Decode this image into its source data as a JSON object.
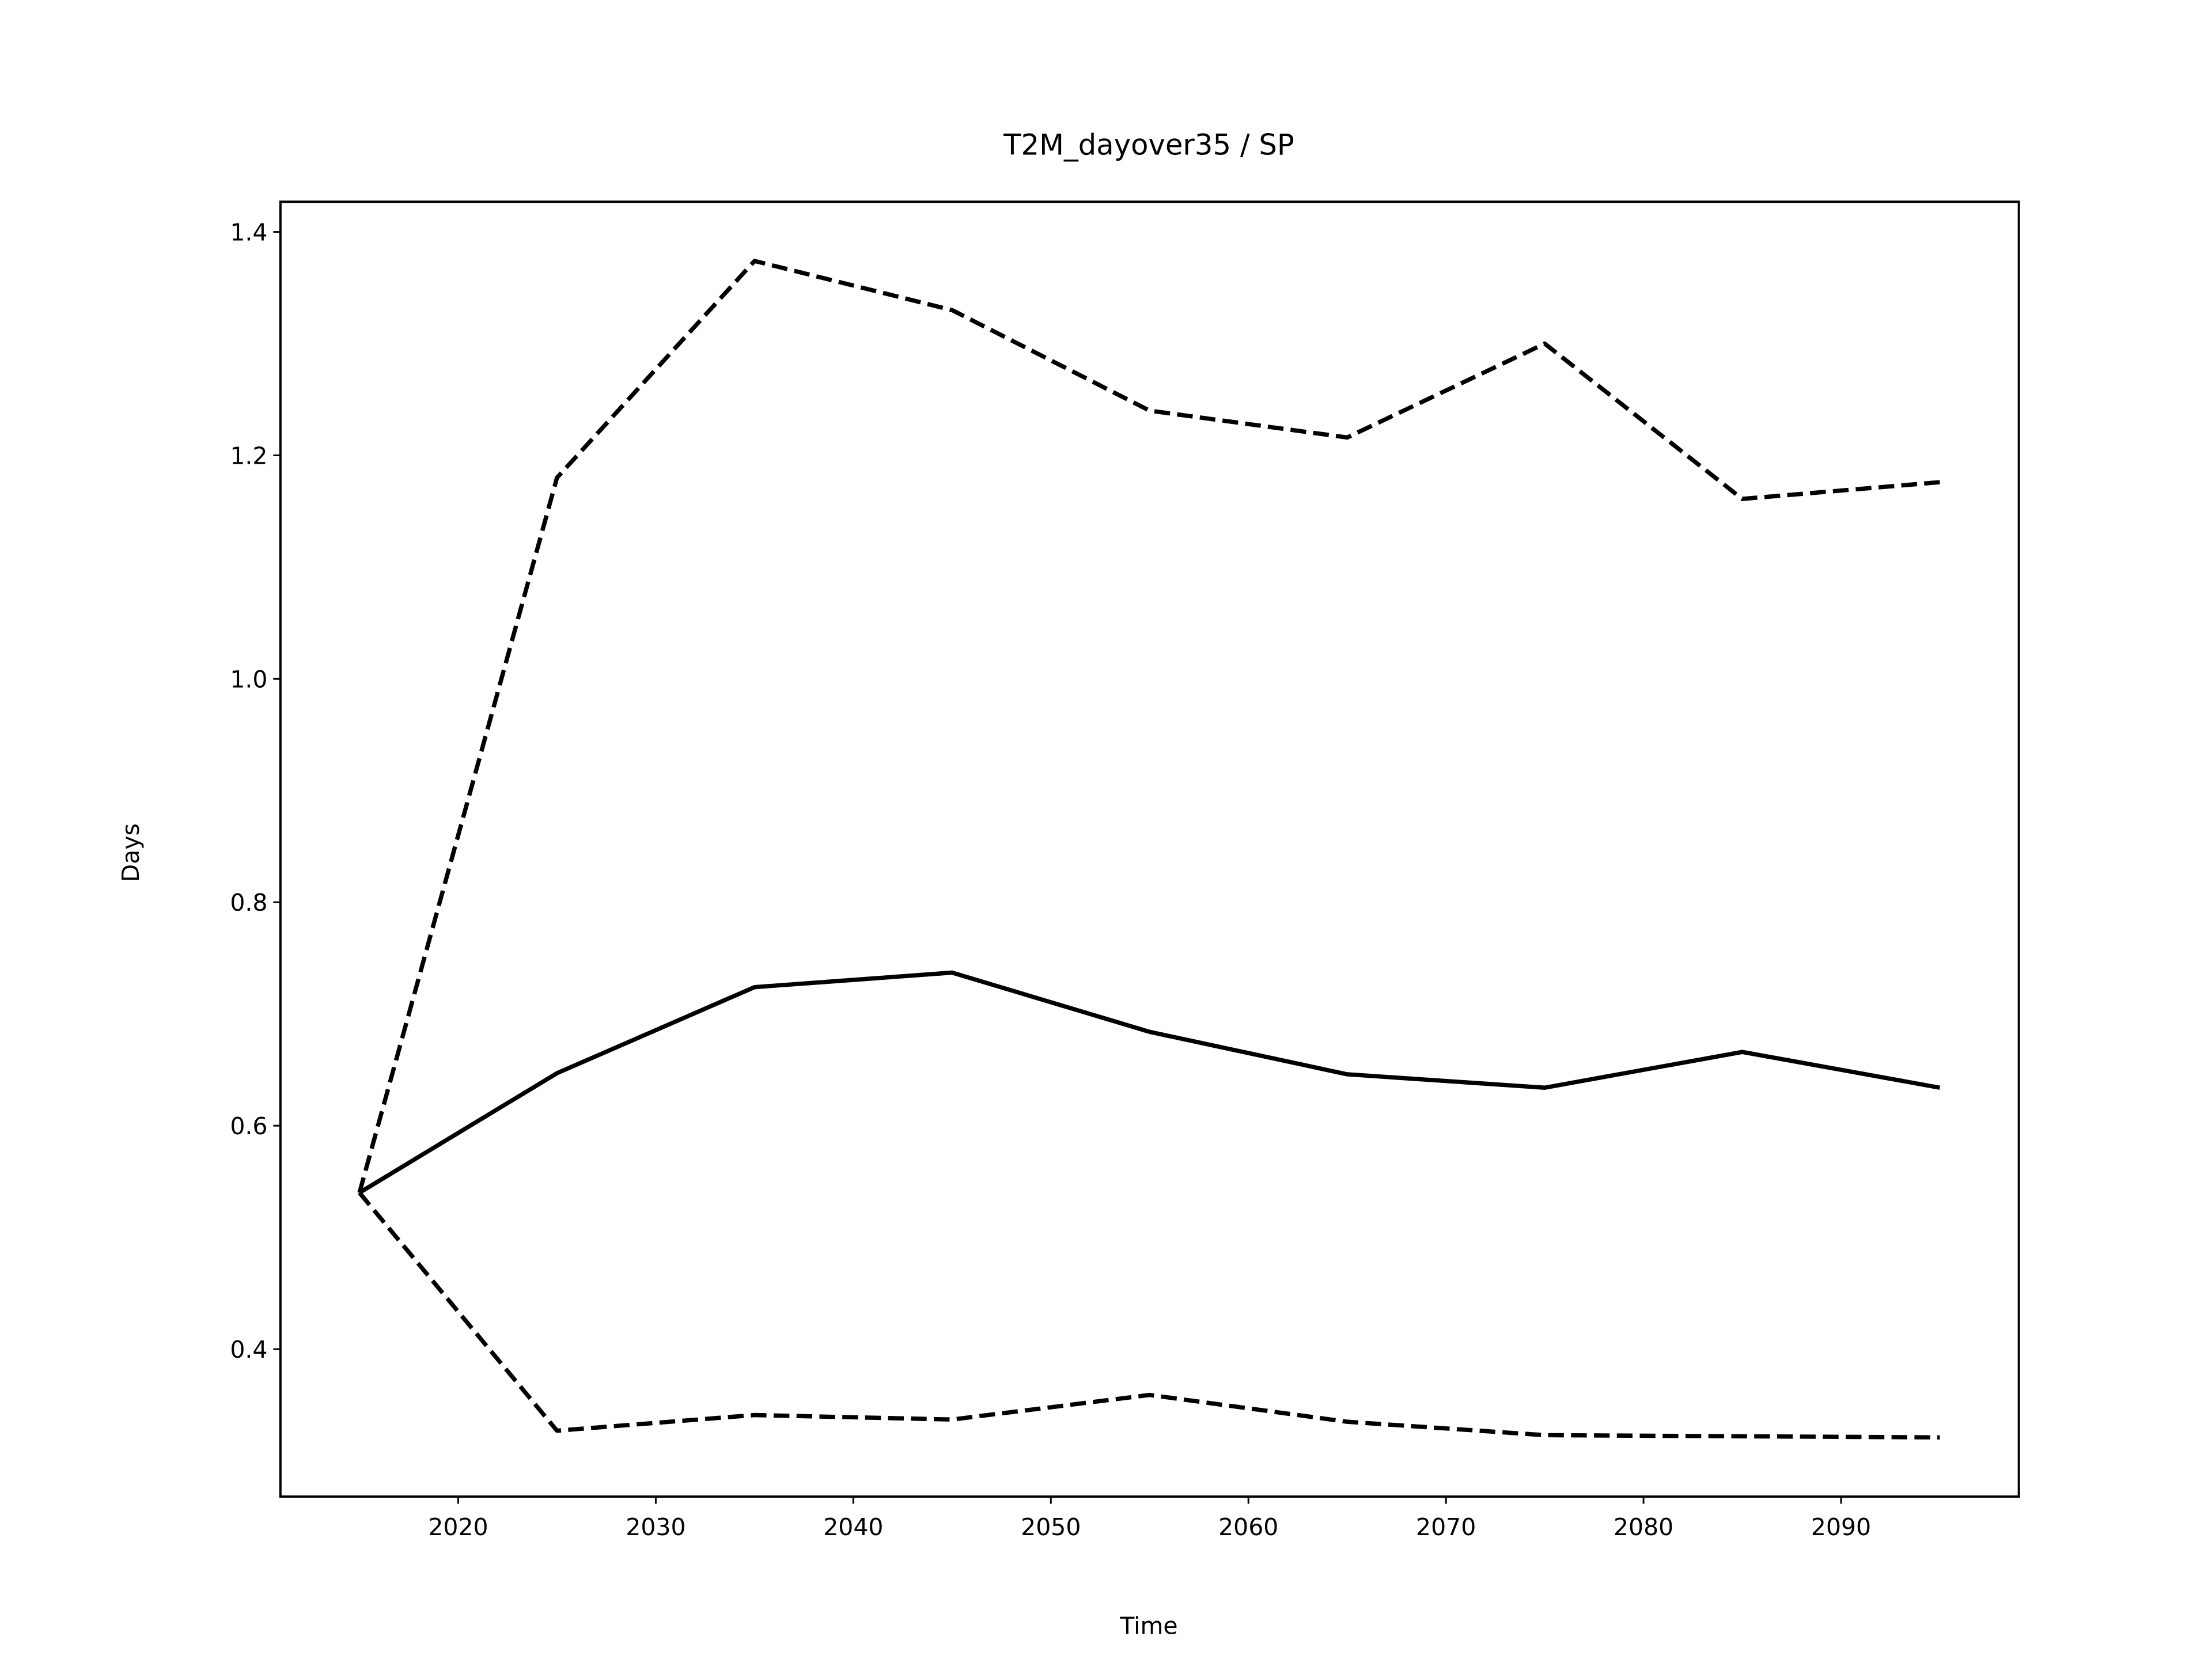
{
  "chart_data": {
    "type": "line",
    "title": "T2M_dayover35 / SP",
    "xlabel": "Time",
    "ylabel": "Days",
    "x": [
      2015,
      2025,
      2035,
      2045,
      2055,
      2065,
      2075,
      2085,
      2095
    ],
    "series": [
      {
        "color": "#000000",
        "style": "solid",
        "values": [
          0.54,
          0.647,
          0.724,
          0.737,
          0.684,
          0.646,
          0.634,
          0.666,
          0.634
        ]
      },
      {
        "color": "#000000",
        "style": "dashed",
        "values": [
          0.54,
          1.18,
          1.374,
          1.33,
          1.24,
          1.216,
          1.3,
          1.161,
          1.176
        ]
      },
      {
        "color": "#000000",
        "style": "dashed",
        "values": [
          0.54,
          0.327,
          0.341,
          0.337,
          0.359,
          0.335,
          0.323,
          0.322,
          0.321
        ]
      }
    ],
    "xlim": [
      2011,
      2099
    ],
    "xticks": [
      2020,
      2030,
      2040,
      2050,
      2060,
      2070,
      2080,
      2090
    ],
    "ylim": [
      0.268,
      1.427
    ],
    "yticks": [
      0.4,
      0.6,
      0.8,
      {
        "value": 1,
        "label": "1.0"
      },
      1.2,
      1.4
    ],
    "grid": false
  }
}
